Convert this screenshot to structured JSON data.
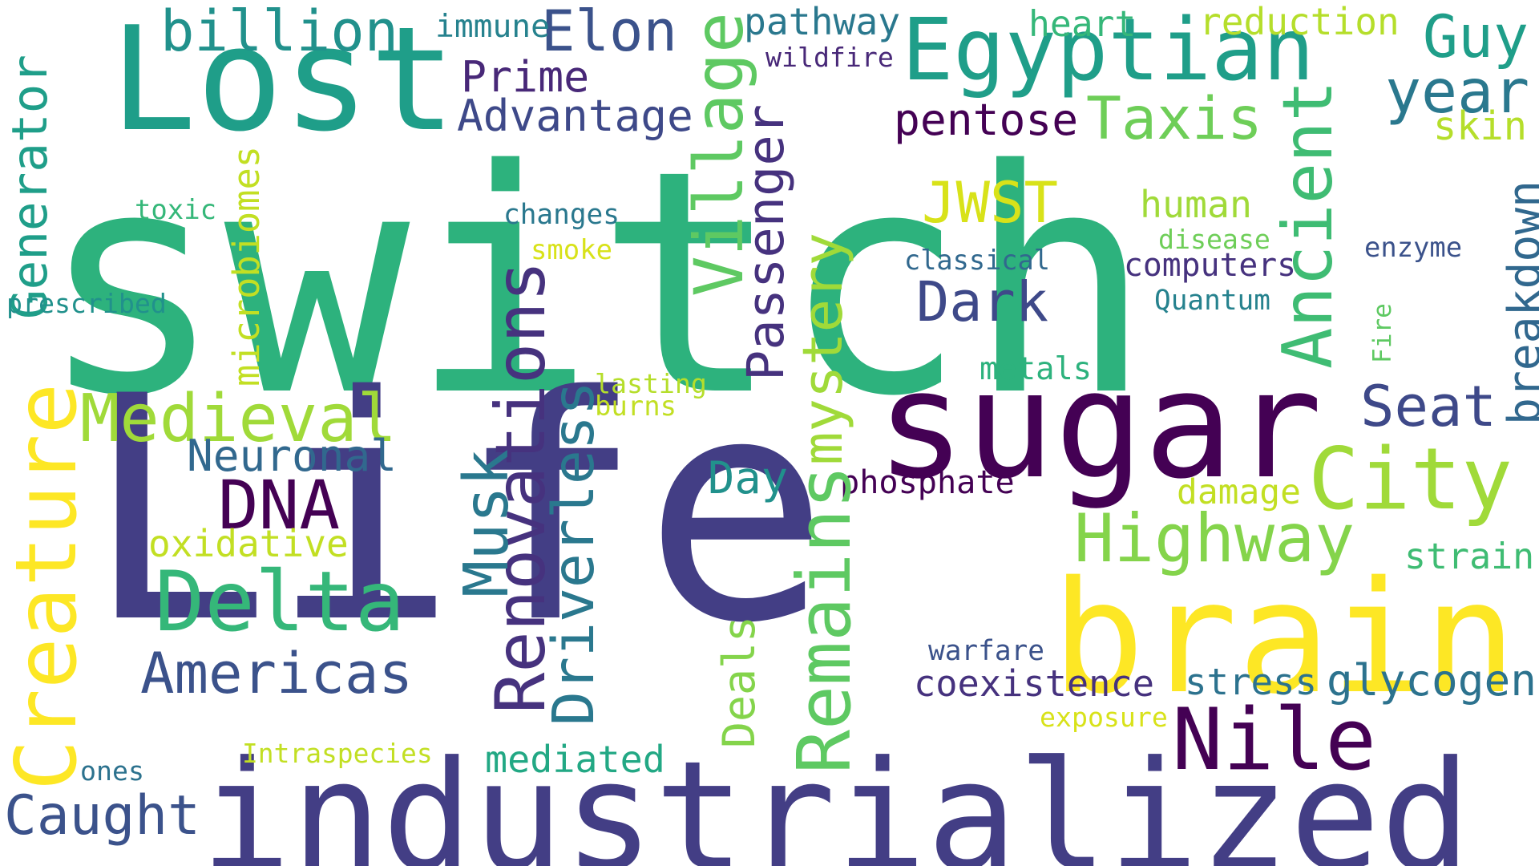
{
  "background": "#ffffff",
  "words": [
    {
      "text": "switch",
      "color": "#2db27d"
    },
    {
      "text": "Life",
      "color": "#433e85"
    },
    {
      "text": "industrialized",
      "color": "#433e85"
    },
    {
      "text": "Lost",
      "color": "#1f9e89"
    },
    {
      "text": "sugar",
      "color": "#440154"
    },
    {
      "text": "brain",
      "color": "#fde725"
    },
    {
      "text": "Egyptian",
      "color": "#1f9e89"
    },
    {
      "text": "billion",
      "color": "#21918c"
    },
    {
      "text": "Elon",
      "color": "#3b528b"
    },
    {
      "text": "immune",
      "color": "#26828e"
    },
    {
      "text": "pathway",
      "color": "#2a788e"
    },
    {
      "text": "heart",
      "color": "#35b779"
    },
    {
      "text": "reduction",
      "color": "#b5de2b"
    },
    {
      "text": "Guy",
      "color": "#1f9e89"
    },
    {
      "text": "year",
      "color": "#2a788e"
    },
    {
      "text": "skin",
      "color": "#b5de2b"
    },
    {
      "text": "wildfire",
      "color": "#482878"
    },
    {
      "text": "Prime",
      "color": "#482878"
    },
    {
      "text": "Advantage",
      "color": "#3e4989"
    },
    {
      "text": "pentose",
      "color": "#440154"
    },
    {
      "text": "Taxis",
      "color": "#6ece58"
    },
    {
      "text": "Village",
      "color": "#5ec962"
    },
    {
      "text": "Passenger",
      "color": "#46327e"
    },
    {
      "text": "Ancient",
      "color": "#3fbc73"
    },
    {
      "text": "JWST",
      "color": "#d8e219"
    },
    {
      "text": "human",
      "color": "#a0da39"
    },
    {
      "text": "disease",
      "color": "#6ece58"
    },
    {
      "text": "computers",
      "color": "#46327e"
    },
    {
      "text": "enzyme",
      "color": "#3b528b"
    },
    {
      "text": "classical",
      "color": "#31688e"
    },
    {
      "text": "Quantum",
      "color": "#26828e"
    },
    {
      "text": "Dark",
      "color": "#3e4989"
    },
    {
      "text": "changes",
      "color": "#2a788e"
    },
    {
      "text": "smoke",
      "color": "#d8e219"
    },
    {
      "text": "toxic",
      "color": "#35b779"
    },
    {
      "text": "Generator",
      "color": "#1f9e89"
    },
    {
      "text": "prescribed",
      "color": "#21918c"
    },
    {
      "text": "microbiomes",
      "color": "#c2df23"
    },
    {
      "text": "mystery",
      "color": "#a0da39"
    },
    {
      "text": "breakdown",
      "color": "#31688e"
    },
    {
      "text": "Fire",
      "color": "#5ec962"
    },
    {
      "text": "metals",
      "color": "#2db27d"
    },
    {
      "text": "Medieval",
      "color": "#a0da39"
    },
    {
      "text": "Creature",
      "color": "#fde725"
    },
    {
      "text": "Neuronal",
      "color": "#31688e"
    },
    {
      "text": "DNA",
      "color": "#440154"
    },
    {
      "text": "Renovations",
      "color": "#46327e"
    },
    {
      "text": "Musk",
      "color": "#2a788e"
    },
    {
      "text": "Driverless",
      "color": "#2a788e"
    },
    {
      "text": "lasting",
      "color": "#b5de2b"
    },
    {
      "text": "burns",
      "color": "#c2df23"
    },
    {
      "text": "Seat",
      "color": "#3e4989"
    },
    {
      "text": "City",
      "color": "#a0da39"
    },
    {
      "text": "Day",
      "color": "#21918c"
    },
    {
      "text": "phosphate",
      "color": "#440154"
    },
    {
      "text": "Remains",
      "color": "#5ec962"
    },
    {
      "text": "Highway",
      "color": "#84d44b"
    },
    {
      "text": "damage",
      "color": "#c2df23"
    },
    {
      "text": "oxidative",
      "color": "#c2df23"
    },
    {
      "text": "Delta",
      "color": "#35b779"
    },
    {
      "text": "strain",
      "color": "#3fbc73"
    },
    {
      "text": "Americas",
      "color": "#3b528b"
    },
    {
      "text": "Deals",
      "color": "#84d44b"
    },
    {
      "text": "warfare",
      "color": "#3b528b"
    },
    {
      "text": "coexistence",
      "color": "#46327e"
    },
    {
      "text": "stress",
      "color": "#2c728e"
    },
    {
      "text": "glycogen",
      "color": "#2c728e"
    },
    {
      "text": "Nile",
      "color": "#440154"
    },
    {
      "text": "exposure",
      "color": "#d8e219"
    },
    {
      "text": "Intraspecies",
      "color": "#c2df23"
    },
    {
      "text": "ones",
      "color": "#2c728e"
    },
    {
      "text": "mediated",
      "color": "#22a884"
    },
    {
      "text": "Caught",
      "color": "#3b528b"
    }
  ]
}
